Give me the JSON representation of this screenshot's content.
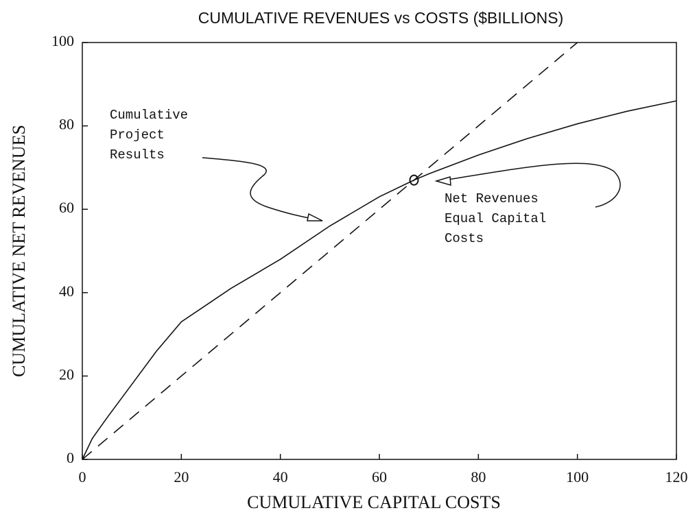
{
  "chart_data": {
    "type": "line",
    "title": "CUMULATIVE REVENUES vs COSTS ($BILLIONS)",
    "x_label": "CUMULATIVE CAPITAL COSTS",
    "y_label": "CUMULATIVE NET REVENUES",
    "xlim": [
      0,
      120
    ],
    "ylim": [
      0,
      100
    ],
    "xticks": [
      0,
      20,
      40,
      60,
      80,
      100,
      120
    ],
    "yticks": [
      0,
      20,
      40,
      60,
      80,
      100
    ],
    "series": [
      {
        "color": "#111111",
        "style": "solid",
        "x": [
          0,
          2,
          5,
          10,
          15,
          20,
          25,
          30,
          40,
          50,
          60,
          67,
          70,
          80,
          90,
          100,
          110,
          120
        ],
        "values": [
          0,
          5,
          10,
          18,
          26,
          33,
          37,
          41,
          48,
          56,
          63,
          67,
          68.5,
          73,
          77,
          80.5,
          83.5,
          86
        ]
      },
      {
        "color": "#111111",
        "style": "dashed",
        "x": [
          0,
          100
        ],
        "values": [
          0,
          100
        ]
      }
    ],
    "annotations": [
      {
        "lines": [
          "Cumulative",
          "Project",
          "Results"
        ]
      },
      {
        "lines": [
          "Net Revenues",
          "Equal Capital",
          "Costs"
        ],
        "point": [
          67,
          67
        ]
      }
    ]
  }
}
